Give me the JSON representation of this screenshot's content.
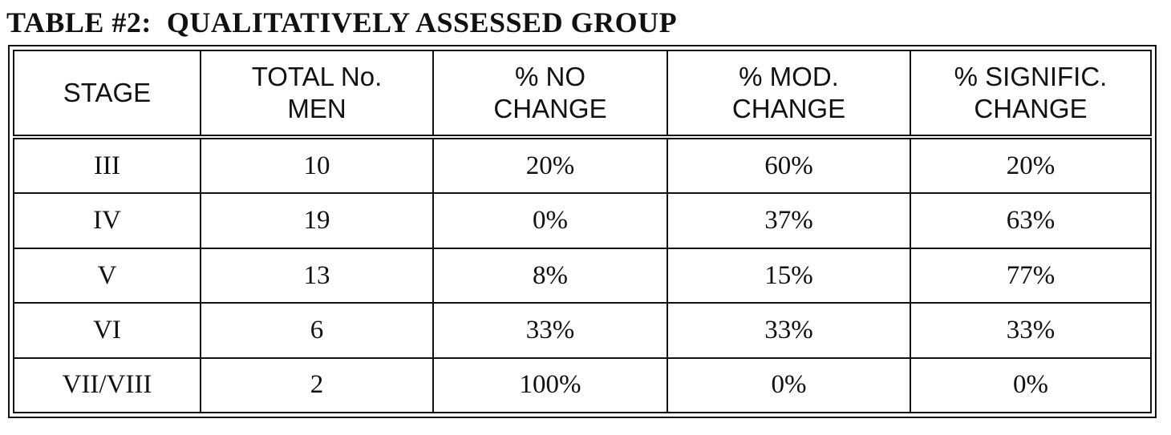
{
  "title": "TABLE #2:  QUALITATIVELY ASSESSED GROUP",
  "headers": [
    [
      "STAGE"
    ],
    [
      "TOTAL No.",
      "MEN"
    ],
    [
      "% NO",
      "CHANGE"
    ],
    [
      "% MOD.",
      "CHANGE"
    ],
    [
      "% SIGNIFIC.",
      "CHANGE"
    ]
  ],
  "rows": [
    [
      "III",
      "10",
      "20%",
      "60%",
      "20%"
    ],
    [
      "IV",
      "19",
      "0%",
      "37%",
      "63%"
    ],
    [
      "V",
      "13",
      "8%",
      "15%",
      "77%"
    ],
    [
      "VI",
      "6",
      "33%",
      "33%",
      "33%"
    ],
    [
      "VII/VIII",
      "2",
      "100%",
      "0%",
      "0%"
    ]
  ]
}
